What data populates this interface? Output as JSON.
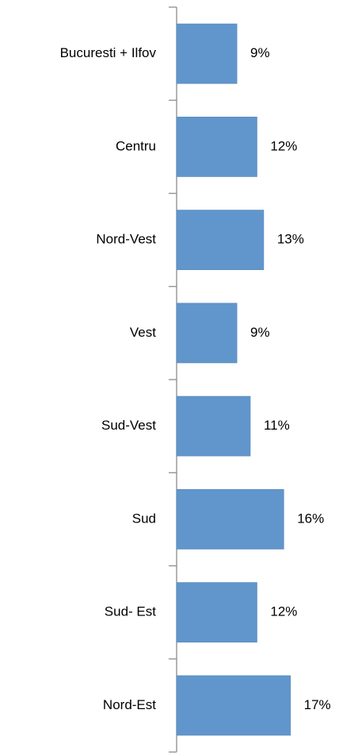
{
  "chart_data": {
    "type": "bar",
    "orientation": "horizontal",
    "categories": [
      "Bucuresti + Ilfov",
      "Centru",
      "Nord-Vest",
      "Vest",
      "Sud-Vest",
      "Sud",
      "Sud- Est",
      "Nord-Est"
    ],
    "values": [
      9,
      12,
      13,
      9,
      11,
      16,
      12,
      17
    ],
    "value_labels": [
      "9%",
      "12%",
      "13%",
      "9%",
      "11%",
      "16%",
      "12%",
      "17%"
    ],
    "color": "#6196cc"
  }
}
